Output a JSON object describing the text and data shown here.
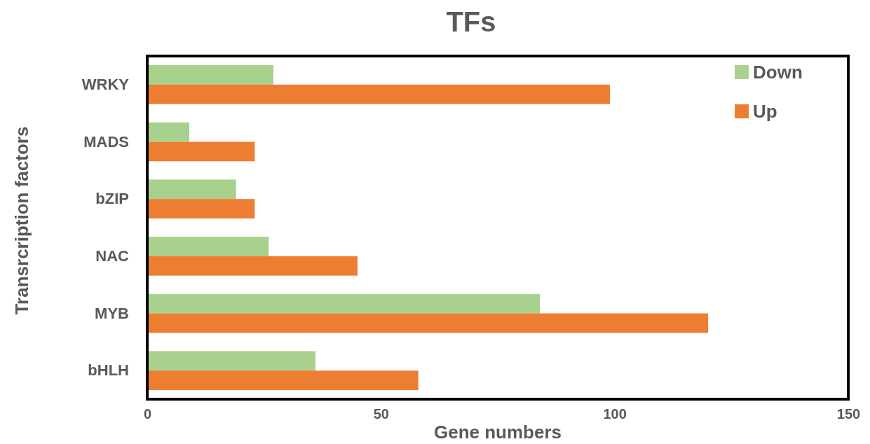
{
  "chart_data": {
    "type": "bar",
    "orientation": "horizontal",
    "title": "TFs",
    "xlabel": "Gene numbers",
    "ylabel": "Transrcription factors",
    "categories": [
      "WRKY",
      "MADS",
      "bZIP",
      "NAC",
      "MYB",
      "bHLH"
    ],
    "series": [
      {
        "name": "Down",
        "color": "#a9d18e",
        "values": [
          27,
          9,
          19,
          26,
          84,
          36
        ]
      },
      {
        "name": "Up",
        "color": "#ed7d31",
        "values": [
          99,
          23,
          23,
          45,
          120,
          58
        ]
      }
    ],
    "xlim": [
      0,
      150
    ],
    "xticks": [
      0,
      50,
      100,
      150
    ],
    "grid": false,
    "legend": "top right"
  }
}
